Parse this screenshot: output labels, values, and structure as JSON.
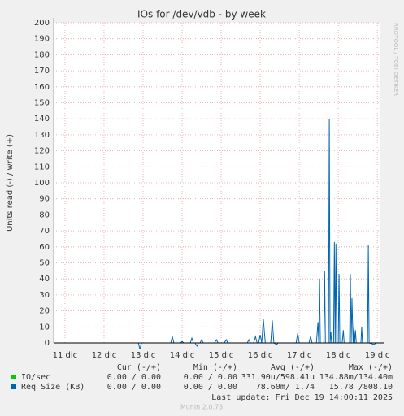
{
  "chart_data": {
    "type": "line",
    "title": "IOs for /dev/vdb - by week",
    "y_label": "Units read (-) / write (+)",
    "side_text": "RRDTOOL / TOBI OETIKER",
    "footer": "Munin 2.0.73",
    "last_update": "Last update: Fri Dec 19 14:00:11 2025",
    "xlim": [
      10.71,
      19.08
    ],
    "xticks": [
      {
        "value": 11,
        "label": "11 dic"
      },
      {
        "value": 12,
        "label": "12 dic"
      },
      {
        "value": 13,
        "label": "13 dic"
      },
      {
        "value": 14,
        "label": "14 dic"
      },
      {
        "value": 15,
        "label": "15 dic"
      },
      {
        "value": 16,
        "label": "16 dic"
      },
      {
        "value": 17,
        "label": "17 dic"
      },
      {
        "value": 18,
        "label": "18 dic"
      },
      {
        "value": 19,
        "label": "19 dic"
      }
    ],
    "ylim": [
      0,
      200
    ],
    "yticks": [
      0,
      10,
      20,
      30,
      40,
      50,
      60,
      70,
      80,
      90,
      100,
      110,
      120,
      130,
      140,
      150,
      160,
      170,
      180,
      190,
      200
    ],
    "grid": true,
    "series": [
      {
        "name": "IO/sec",
        "color": "#00cc00",
        "x": [
          10.71,
          19.08
        ],
        "values": [
          0,
          0
        ]
      },
      {
        "name": "Req Size (KB)",
        "color": "#0066b3",
        "x": [
          10.71,
          12.88,
          12.92,
          12.96,
          13.71,
          13.75,
          13.79,
          13.96,
          14.0,
          14.04,
          14.21,
          14.25,
          14.29,
          14.33,
          14.38,
          14.42,
          14.46,
          14.5,
          14.54,
          14.83,
          14.88,
          14.92,
          15.08,
          15.13,
          15.17,
          15.67,
          15.71,
          15.75,
          15.83,
          15.88,
          15.92,
          15.96,
          16.0,
          16.04,
          16.08,
          16.13,
          16.27,
          16.31,
          16.35,
          16.42,
          16.46,
          16.92,
          16.96,
          17.0,
          17.25,
          17.29,
          17.33,
          17.44,
          17.48,
          17.5,
          17.52,
          17.54,
          17.63,
          17.65,
          17.67,
          17.75,
          17.77,
          17.79,
          17.81,
          17.83,
          17.88,
          17.9,
          17.92,
          17.94,
          17.96,
          18.0,
          18.02,
          18.04,
          18.1,
          18.13,
          18.15,
          18.29,
          18.31,
          18.33,
          18.35,
          18.38,
          18.4,
          18.42,
          18.44,
          18.46,
          18.58,
          18.6,
          18.62,
          18.75,
          18.77,
          18.79,
          18.92,
          18.96,
          19.08
        ],
        "values": [
          0,
          0,
          -4,
          0,
          0,
          4,
          0,
          0,
          1,
          0,
          0,
          3,
          0,
          0,
          -2,
          0,
          0,
          2,
          0,
          0,
          2,
          0,
          0,
          2,
          0,
          0,
          2,
          0,
          0,
          4,
          0,
          0,
          5,
          0,
          15,
          0,
          0,
          14,
          0,
          -1,
          0,
          0,
          6,
          0,
          0,
          4,
          0,
          0,
          13,
          0,
          40,
          0,
          0,
          45,
          0,
          0,
          140,
          0,
          7,
          0,
          0,
          63,
          0,
          62,
          0,
          0,
          43,
          0,
          0,
          8,
          0,
          0,
          43,
          0,
          28,
          0,
          10,
          0,
          8,
          0,
          0,
          10,
          0,
          0,
          61,
          0,
          -1,
          0,
          0
        ]
      }
    ]
  },
  "legend_table": {
    "headers": [
      "Cur (-/+)",
      "Min (-/+)",
      "Avg (-/+)",
      "Max (-/+)"
    ],
    "rows": [
      [
        "0.00 / 0.00",
        "0.00 / 0.00",
        "331.90u/598.41u",
        "134.88m/134.40m"
      ],
      [
        "0.00 / 0.00",
        "0.00 / 0.00",
        "78.60m/ 1.74",
        "15.78 /808.10"
      ]
    ]
  }
}
